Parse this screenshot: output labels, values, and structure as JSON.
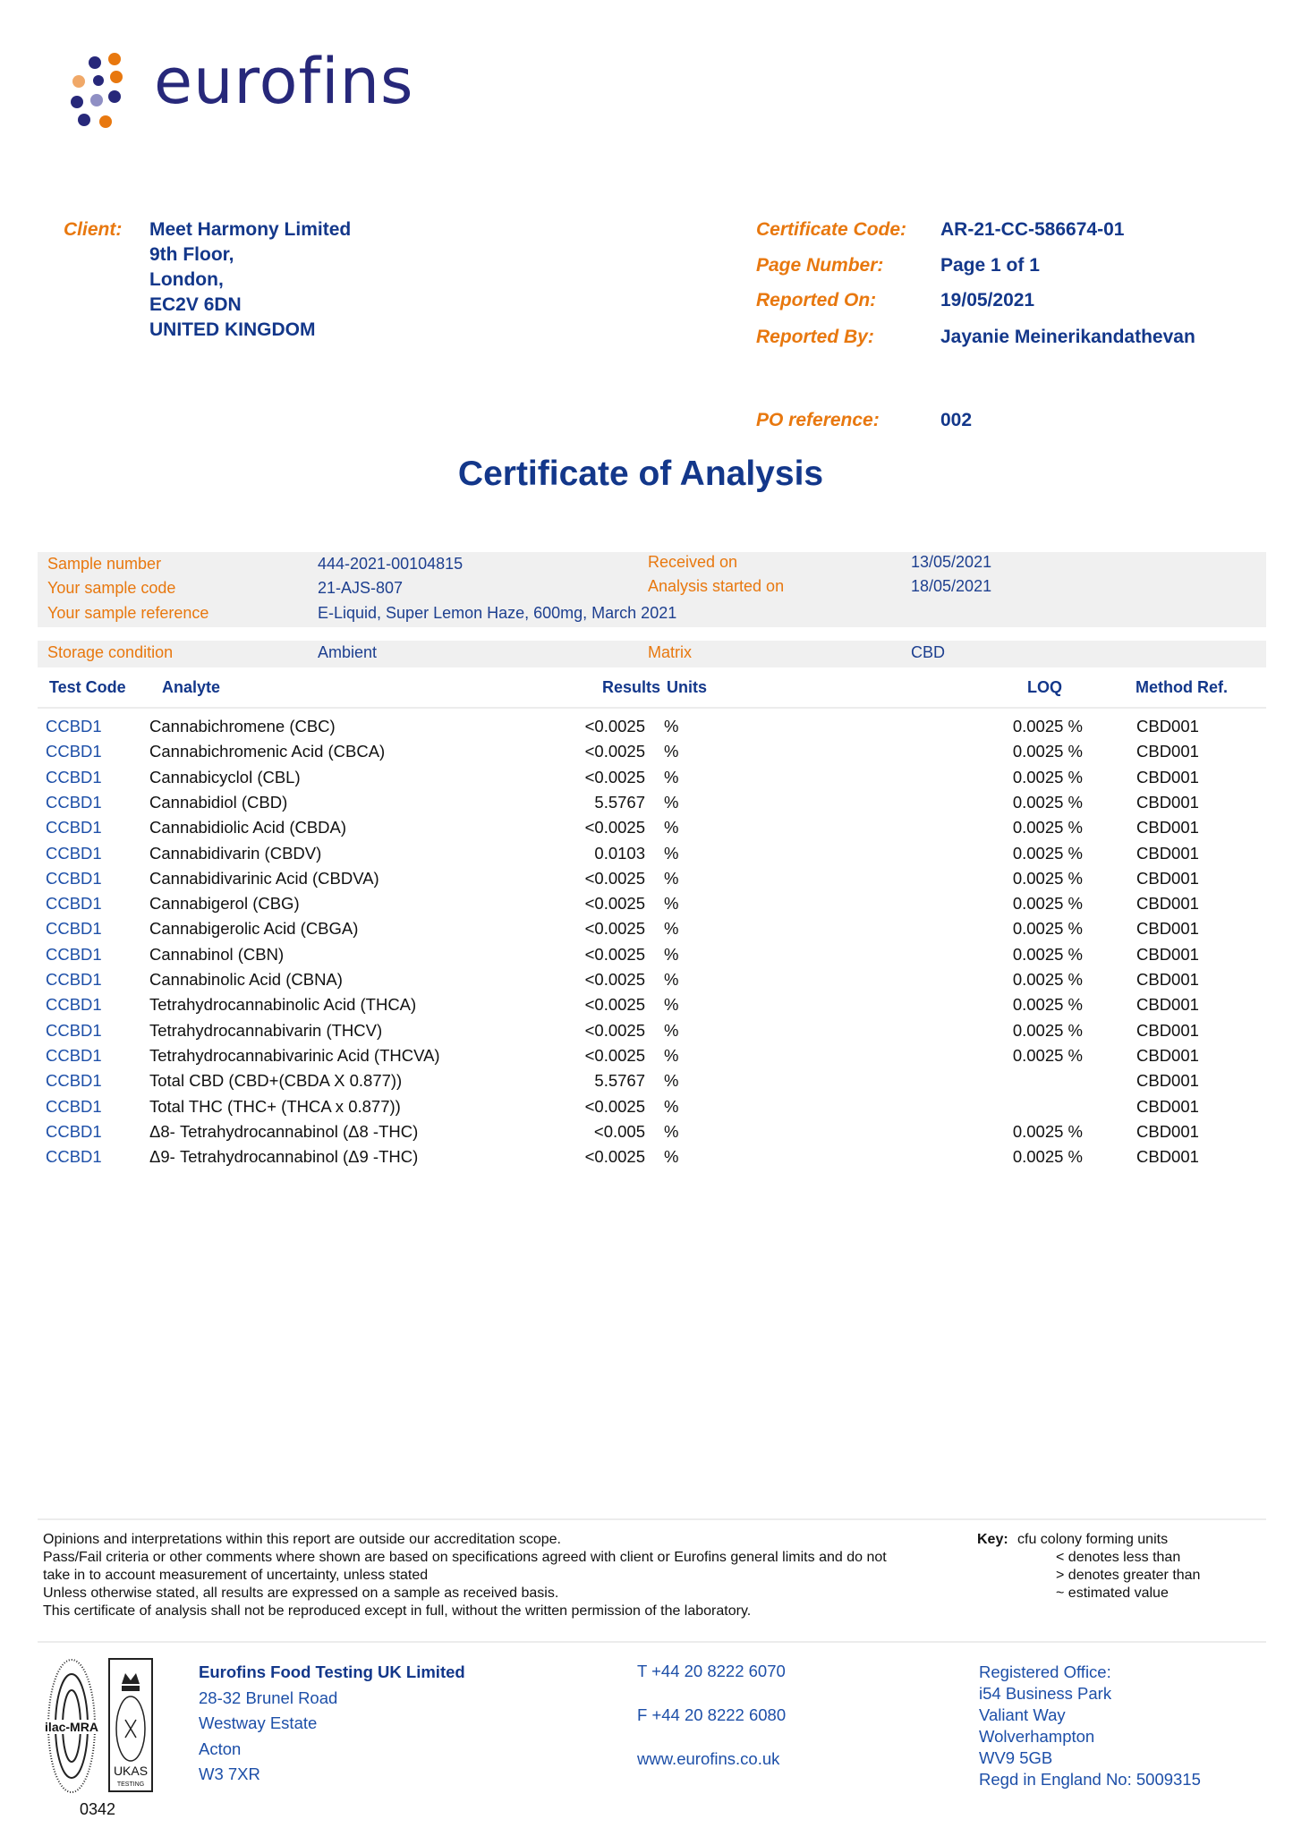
{
  "logo": {
    "text": "eurofins",
    "colors": {
      "navy": "#27287a",
      "orange": "#e8780f",
      "lilac": "#8f8fc4"
    }
  },
  "client": {
    "label": "Client:",
    "lines": [
      "Meet Harmony Limited",
      "9th Floor,",
      "London,",
      "EC2V 6DN",
      "UNITED KINGDOM"
    ]
  },
  "meta": [
    {
      "label": "Certificate Code:",
      "value": "AR-21-CC-586674-01"
    },
    {
      "label": "Page Number:",
      "value": "Page 1 of 1"
    },
    {
      "label": "Reported On:",
      "value": "19/05/2021"
    },
    {
      "label": "Reported By:",
      "value": "Jayanie Meinerikandathevan"
    },
    {
      "label": "PO reference:",
      "value": "002"
    }
  ],
  "title": "Certificate of Analysis",
  "sample": {
    "rows": [
      {
        "l1": "Sample number",
        "v1": "444-2021-00104815",
        "l2": "Received on",
        "v2": "13/05/2021"
      },
      {
        "l1": "Your sample code",
        "v1": "21-AJS-807",
        "l2": "Analysis started on",
        "v2": "18/05/2021"
      },
      {
        "l1": "Your sample reference",
        "v1": "E-Liquid, Super Lemon Haze, 600mg, March 2021",
        "l2": "",
        "v2": ""
      }
    ],
    "storage": {
      "l1": "Storage condition",
      "v1": "Ambient",
      "l2": "Matrix",
      "v2": "CBD"
    }
  },
  "table": {
    "headers": {
      "code": "Test Code",
      "analyte": "Analyte",
      "results": "Results",
      "units": "Units",
      "loq": "LOQ",
      "method": "Method Ref."
    },
    "rows": [
      {
        "code": "CCBD1",
        "analyte": "Cannabichromene (CBC)",
        "result": "<0.0025",
        "unit": "%",
        "loq": "0.0025 %",
        "method": "CBD001"
      },
      {
        "code": "CCBD1",
        "analyte": "Cannabichromenic Acid (CBCA)",
        "result": "<0.0025",
        "unit": "%",
        "loq": "0.0025 %",
        "method": "CBD001"
      },
      {
        "code": "CCBD1",
        "analyte": "Cannabicyclol (CBL)",
        "result": "<0.0025",
        "unit": "%",
        "loq": "0.0025 %",
        "method": "CBD001"
      },
      {
        "code": "CCBD1",
        "analyte": "Cannabidiol (CBD)",
        "result": "5.5767",
        "unit": "%",
        "loq": "0.0025 %",
        "method": "CBD001"
      },
      {
        "code": "CCBD1",
        "analyte": "Cannabidiolic Acid (CBDA)",
        "result": "<0.0025",
        "unit": "%",
        "loq": "0.0025 %",
        "method": "CBD001"
      },
      {
        "code": "CCBD1",
        "analyte": "Cannabidivarin (CBDV)",
        "result": "0.0103",
        "unit": "%",
        "loq": "0.0025 %",
        "method": "CBD001"
      },
      {
        "code": "CCBD1",
        "analyte": "Cannabidivarinic Acid (CBDVA)",
        "result": "<0.0025",
        "unit": "%",
        "loq": "0.0025 %",
        "method": "CBD001"
      },
      {
        "code": "CCBD1",
        "analyte": "Cannabigerol (CBG)",
        "result": "<0.0025",
        "unit": "%",
        "loq": "0.0025 %",
        "method": "CBD001"
      },
      {
        "code": "CCBD1",
        "analyte": "Cannabigerolic Acid (CBGA)",
        "result": "<0.0025",
        "unit": "%",
        "loq": "0.0025 %",
        "method": "CBD001"
      },
      {
        "code": "CCBD1",
        "analyte": "Cannabinol (CBN)",
        "result": "<0.0025",
        "unit": "%",
        "loq": "0.0025 %",
        "method": "CBD001"
      },
      {
        "code": "CCBD1",
        "analyte": "Cannabinolic Acid (CBNA)",
        "result": "<0.0025",
        "unit": "%",
        "loq": "0.0025 %",
        "method": "CBD001"
      },
      {
        "code": "CCBD1",
        "analyte": "Tetrahydrocannabinolic Acid (THCA)",
        "result": "<0.0025",
        "unit": "%",
        "loq": "0.0025 %",
        "method": "CBD001"
      },
      {
        "code": "CCBD1",
        "analyte": "Tetrahydrocannabivarin (THCV)",
        "result": "<0.0025",
        "unit": "%",
        "loq": "0.0025 %",
        "method": "CBD001"
      },
      {
        "code": "CCBD1",
        "analyte": "Tetrahydrocannabivarinic Acid (THCVA)",
        "result": "<0.0025",
        "unit": "%",
        "loq": "0.0025 %",
        "method": "CBD001"
      },
      {
        "code": "CCBD1",
        "analyte": "Total CBD (CBD+(CBDA X 0.877))",
        "result": "5.5767",
        "unit": "%",
        "loq": "",
        "method": "CBD001"
      },
      {
        "code": "CCBD1",
        "analyte": "Total THC (THC+ (THCA x 0.877))",
        "result": "<0.0025",
        "unit": "%",
        "loq": "",
        "method": "CBD001"
      },
      {
        "code": "CCBD1",
        "analyte": "Δ8- Tetrahydrocannabinol (Δ8 -THC)",
        "result": "<0.005",
        "unit": "%",
        "loq": "0.0025 %",
        "method": "CBD001"
      },
      {
        "code": "CCBD1",
        "analyte": "Δ9- Tetrahydrocannabinol (Δ9 -THC)",
        "result": "<0.0025",
        "unit": "%",
        "loq": "0.0025 %",
        "method": "CBD001"
      }
    ]
  },
  "notes": [
    "Opinions and interpretations within this report are outside our accreditation scope.",
    "Pass/Fail criteria or other comments where shown are based on specifications agreed with client or Eurofins general limits and do not",
    "take in to account measurement of uncertainty, unless stated",
    "Unless otherwise stated, all results are expressed on a sample as received basis.",
    "This certificate of analysis shall not be reproduced except in full, without the written permission of the laboratory."
  ],
  "key": {
    "label": "Key:",
    "items": [
      "cfu colony forming units",
      "< denotes less than",
      "> denotes greater than",
      "~ estimated value"
    ]
  },
  "footer": {
    "company": "Eurofins Food Testing UK Limited",
    "address": [
      "28-32 Brunel Road",
      "Westway Estate",
      "Acton",
      "W3 7XR"
    ],
    "phone": "T  +44 20 8222 6070",
    "fax": "F  +44 20 8222 6080",
    "web": "www.eurofins.co.uk",
    "registered": [
      "Registered Office:",
      "i54 Business Park",
      "Valiant Way",
      "Wolverhampton",
      "WV9 5GB",
      "Regd in England No: 5009315"
    ],
    "accreditation_number": "0342",
    "badges": [
      "ilac-MRA",
      "UKAS TESTING"
    ]
  }
}
